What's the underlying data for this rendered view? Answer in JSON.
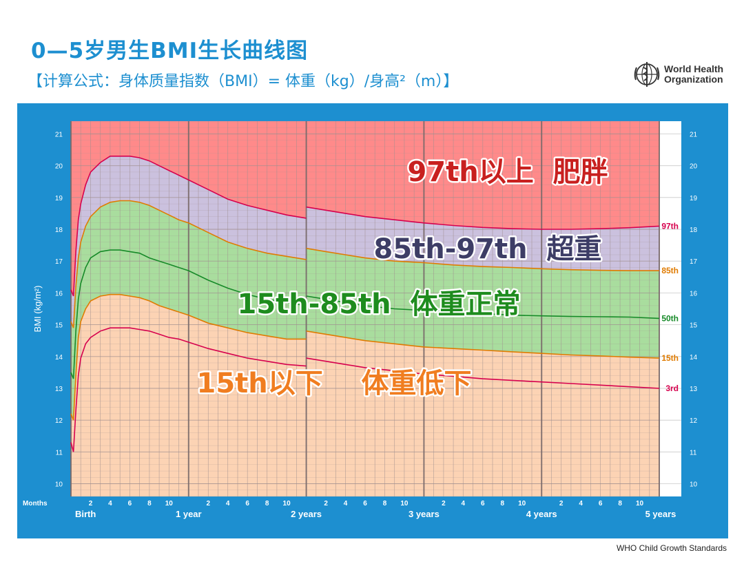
{
  "header": {
    "title": "0—5岁男生BMI生长曲线图",
    "formula": "【计算公式：身体质量指数（BMI）= 体重（kg）/身高²（m）】"
  },
  "logo": {
    "line1": "World Health",
    "line2": "Organization"
  },
  "footer": {
    "source": "WHO Child Growth Standards"
  },
  "chart_data": {
    "type": "line",
    "xlabel": "Months",
    "ylabel": "BMI (kg/m²)",
    "ylim": [
      9.6,
      21.4
    ],
    "y_ticks": [
      10,
      11,
      12,
      13,
      14,
      15,
      16,
      17,
      18,
      19,
      20,
      21
    ],
    "x_unit": "months",
    "xlim": [
      0,
      60
    ],
    "month_tick_labels": [
      "2",
      "4",
      "6",
      "8",
      "10"
    ],
    "year_labels": [
      {
        "month": 0,
        "label": "Birth"
      },
      {
        "month": 12,
        "label": "1 year"
      },
      {
        "month": 24,
        "label": "2 years"
      },
      {
        "month": 36,
        "label": "3 years"
      },
      {
        "month": 48,
        "label": "4 years"
      },
      {
        "month": 60,
        "label": "5 years"
      }
    ],
    "x": [
      0,
      0.25,
      0.5,
      0.75,
      1,
      1.5,
      2,
      3,
      4,
      5,
      6,
      7,
      8,
      9,
      10,
      11,
      12,
      14,
      16,
      18,
      20,
      22,
      24,
      24.01,
      26,
      28,
      30,
      33,
      36,
      39,
      42,
      45,
      48,
      51,
      54,
      57,
      60
    ],
    "series": [
      {
        "name": "97th",
        "color": "#d6004d",
        "values": [
          16.1,
          15.9,
          17.3,
          18.3,
          18.8,
          19.4,
          19.8,
          20.1,
          20.3,
          20.3,
          20.3,
          20.25,
          20.15,
          20.0,
          19.85,
          19.7,
          19.55,
          19.25,
          18.95,
          18.75,
          18.6,
          18.45,
          18.35,
          18.7,
          18.6,
          18.5,
          18.4,
          18.3,
          18.2,
          18.12,
          18.06,
          18.02,
          18.0,
          18.0,
          18.02,
          18.05,
          18.1
        ]
      },
      {
        "name": "85th",
        "color": "#e07b00",
        "values": [
          15.1,
          14.9,
          16.2,
          17.1,
          17.6,
          18.1,
          18.4,
          18.7,
          18.85,
          18.9,
          18.9,
          18.85,
          18.75,
          18.6,
          18.45,
          18.3,
          18.2,
          17.9,
          17.6,
          17.4,
          17.25,
          17.15,
          17.05,
          17.4,
          17.3,
          17.2,
          17.1,
          17.0,
          16.95,
          16.88,
          16.83,
          16.8,
          16.76,
          16.73,
          16.71,
          16.7,
          16.7
        ]
      },
      {
        "name": "50th",
        "color": "#168a28",
        "values": [
          13.5,
          13.3,
          14.8,
          15.8,
          16.3,
          16.8,
          17.1,
          17.3,
          17.35,
          17.35,
          17.3,
          17.25,
          17.1,
          17.0,
          16.9,
          16.8,
          16.7,
          16.4,
          16.15,
          15.95,
          15.8,
          15.7,
          15.6,
          15.9,
          15.8,
          15.7,
          15.6,
          15.5,
          15.45,
          15.4,
          15.35,
          15.3,
          15.28,
          15.26,
          15.25,
          15.24,
          15.2
        ]
      },
      {
        "name": "15th",
        "color": "#e07b00",
        "values": [
          12.2,
          12.0,
          13.4,
          14.6,
          15.1,
          15.5,
          15.75,
          15.9,
          15.95,
          15.95,
          15.9,
          15.85,
          15.75,
          15.6,
          15.5,
          15.4,
          15.3,
          15.05,
          14.9,
          14.75,
          14.65,
          14.55,
          14.55,
          14.8,
          14.7,
          14.6,
          14.5,
          14.4,
          14.3,
          14.25,
          14.2,
          14.15,
          14.1,
          14.05,
          14.02,
          13.98,
          13.95
        ]
      },
      {
        "name": "3rd",
        "color": "#d6004d",
        "values": [
          11.3,
          11.0,
          12.3,
          13.4,
          13.95,
          14.4,
          14.6,
          14.8,
          14.9,
          14.9,
          14.9,
          14.85,
          14.8,
          14.7,
          14.6,
          14.55,
          14.45,
          14.25,
          14.1,
          13.95,
          13.85,
          13.75,
          13.7,
          13.95,
          13.85,
          13.75,
          13.65,
          13.55,
          13.45,
          13.38,
          13.3,
          13.25,
          13.2,
          13.15,
          13.1,
          13.05,
          13.0
        ]
      }
    ],
    "zones": [
      {
        "label": "97th以上  肥胖",
        "color": "#ff8a8a",
        "text_color": "#c8201f"
      },
      {
        "label": "85th-97th  超重",
        "color": "#cbc1de",
        "text_color": "#3d3d66"
      },
      {
        "label": "15th-85th  体重正常",
        "color": "#a9dd9e",
        "text_color": "#1e8c1e"
      },
      {
        "label": "15th以下    体重低下",
        "color": "#fcd3b4",
        "text_color": "#f07d20"
      }
    ],
    "colors": {
      "frame": "#1d8fd0",
      "grid": "#a08f8f"
    },
    "grid": true
  }
}
